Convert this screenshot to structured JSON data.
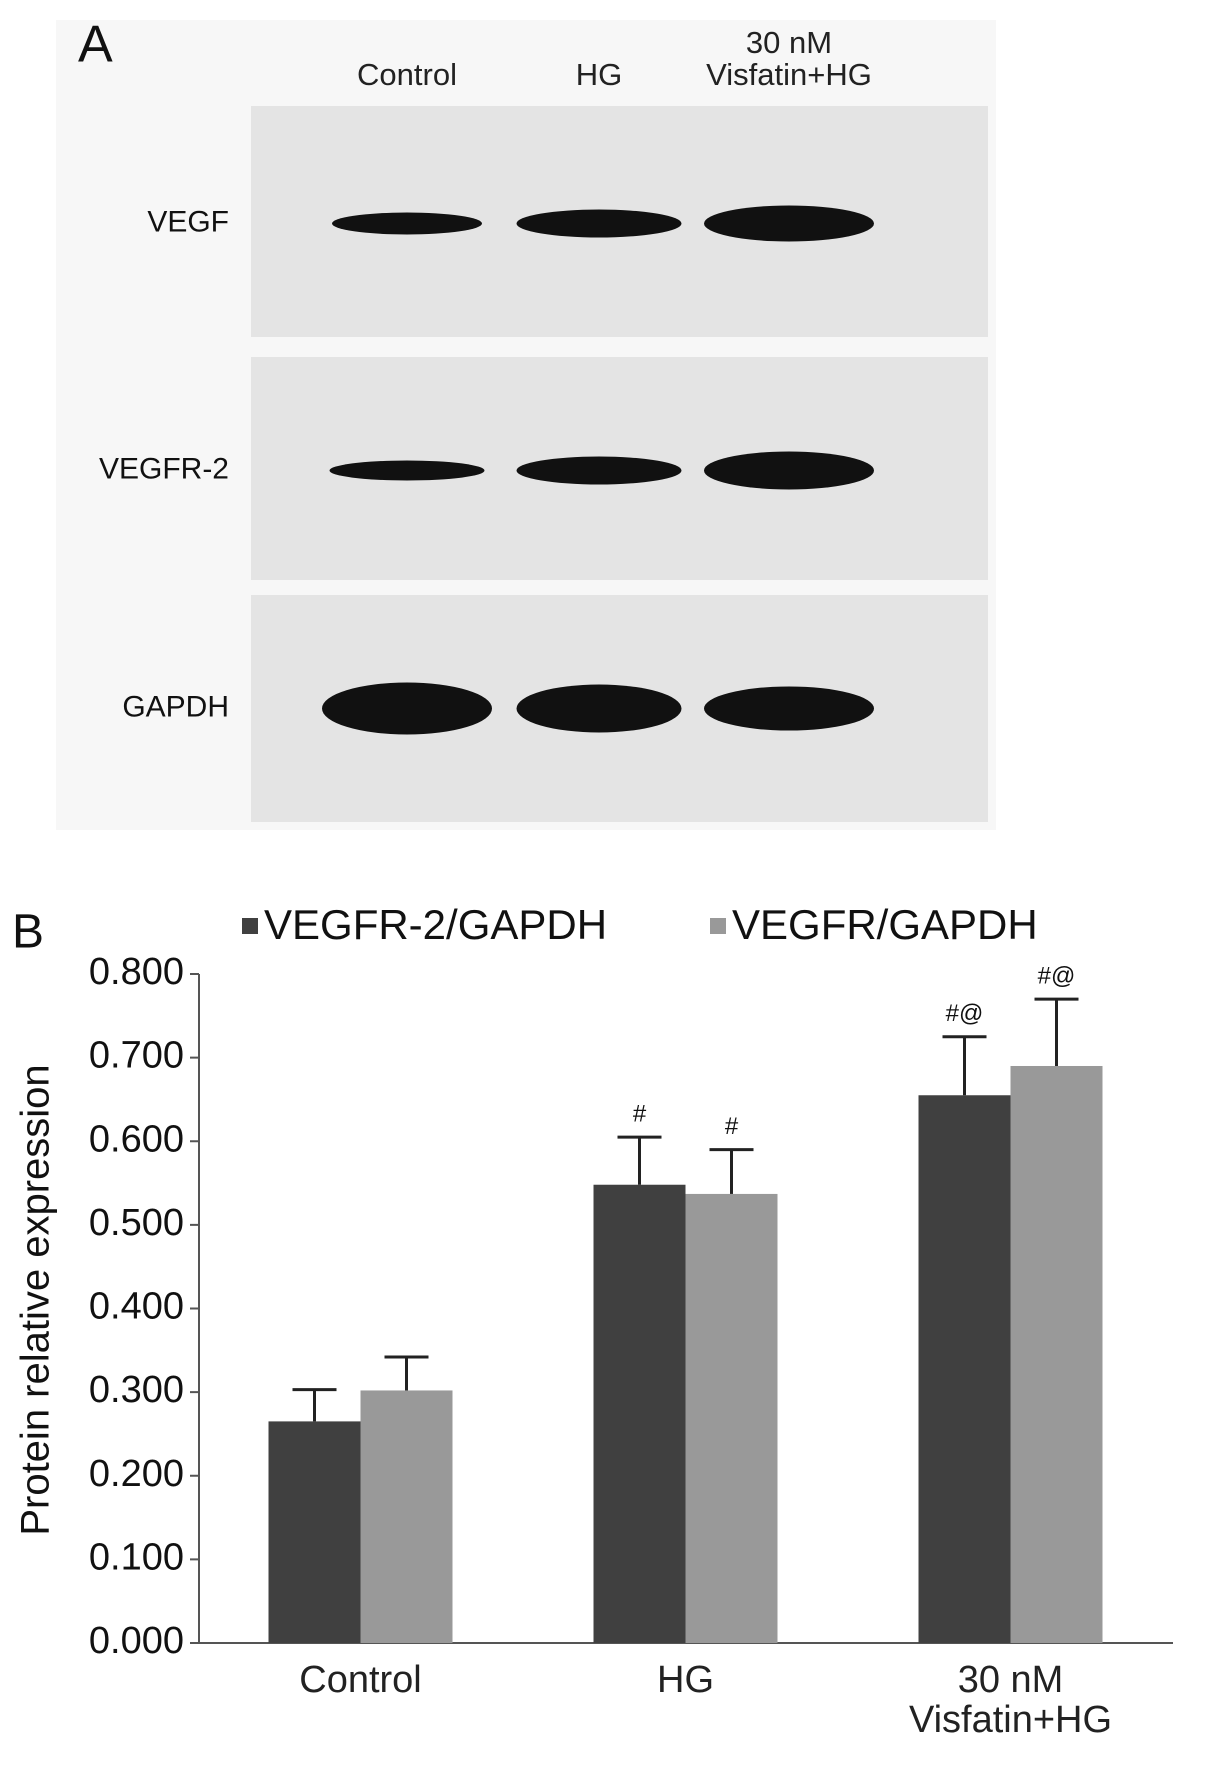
{
  "panel_a": {
    "label": "A",
    "lanes": [
      "Control",
      "HG",
      "30 nM\nVisfatin+HG"
    ],
    "rows": [
      "VEGF",
      "VEGFR-2",
      "GAPDH"
    ]
  },
  "chart_data": {
    "type": "bar",
    "label": "B",
    "y_label": "Protein relative expression",
    "categories": [
      "Control",
      "HG",
      "30 nM\nVisfatin+HG"
    ],
    "series": [
      {
        "name": "VEGFR-2/GAPDH",
        "color": "#404040",
        "values": [
          0.265,
          0.548,
          0.655
        ],
        "errors": [
          0.038,
          0.057,
          0.07
        ],
        "annotations": [
          null,
          "#",
          "#@"
        ]
      },
      {
        "name": "VEGFR/GAPDH",
        "color": "#999999",
        "values": [
          0.302,
          0.537,
          0.69
        ],
        "errors": [
          0.04,
          0.053,
          0.08
        ],
        "annotations": [
          null,
          "#",
          "#@"
        ]
      }
    ],
    "ylim": [
      0,
      0.8
    ],
    "yticks": [
      {
        "value": 0,
        "label": "0.000"
      },
      {
        "value": 0.1,
        "label": "0.100"
      },
      {
        "value": 0.2,
        "label": "0.200"
      },
      {
        "value": 0.3,
        "label": "0.300"
      },
      {
        "value": 0.4,
        "label": "0.400"
      },
      {
        "value": 0.5,
        "label": "0.500"
      },
      {
        "value": 0.6,
        "label": "0.600"
      },
      {
        "value": 0.7,
        "label": "0.700"
      },
      {
        "value": 0.8,
        "label": "0.800"
      }
    ],
    "legend": "top"
  }
}
